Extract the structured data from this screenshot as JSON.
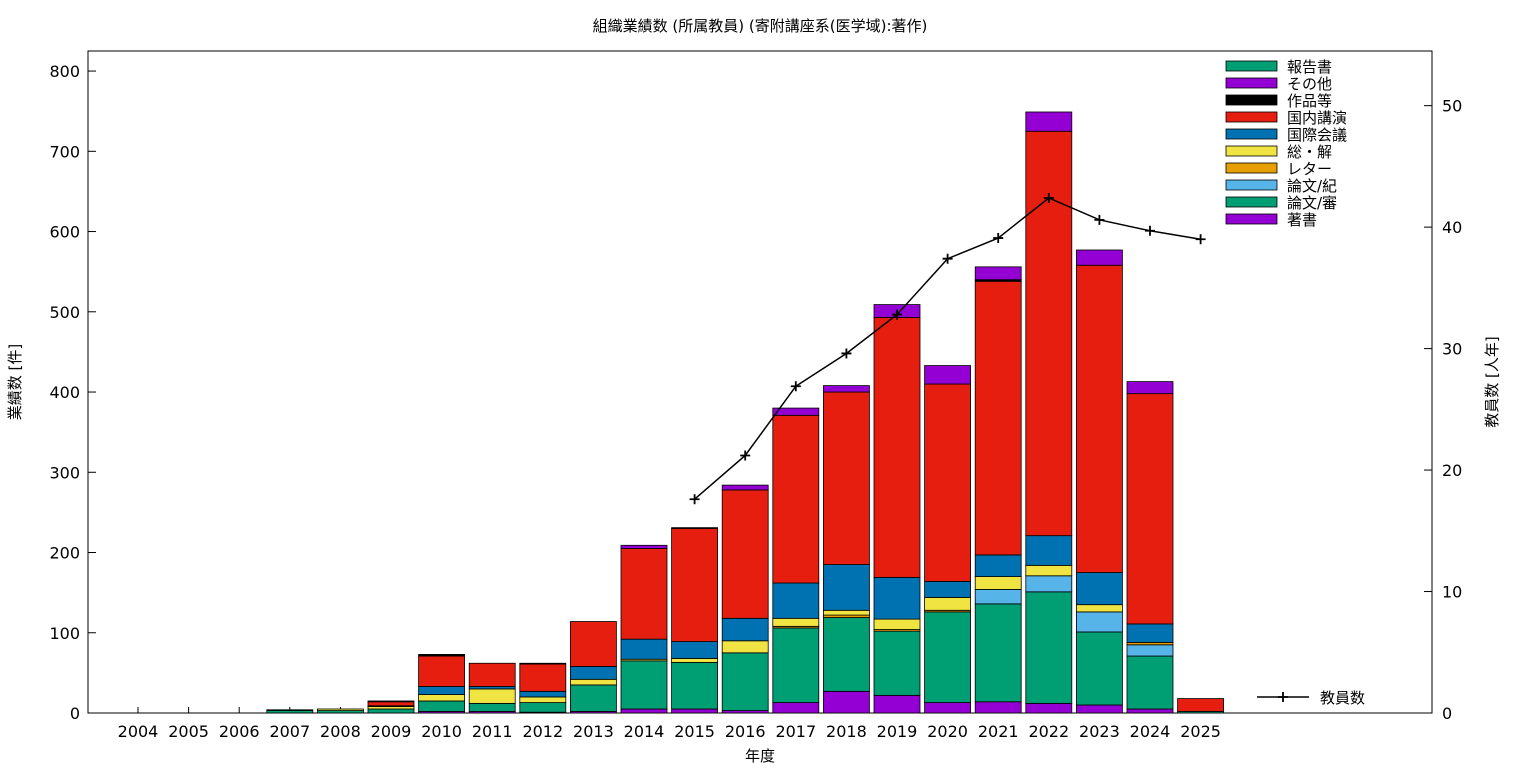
{
  "chart_data": {
    "type": "bar",
    "stacked": true,
    "title": "組織業績数 (所属教員) (寄附講座系(医学域):著作)",
    "xlabel": "年度",
    "ylabel": "業績数 [件]",
    "y2label": "教員数 [人年]",
    "ylim": [
      0,
      825
    ],
    "y2lim": [
      0,
      54.5
    ],
    "yticks": [
      "0",
      "100",
      "200",
      "300",
      "400",
      "500",
      "600",
      "700",
      "800"
    ],
    "y2ticks": [
      "0",
      "10",
      "20",
      "30",
      "40",
      "50"
    ],
    "legend_position": "top-right",
    "categories": [
      "2004",
      "2005",
      "2006",
      "2007",
      "2008",
      "2009",
      "2010",
      "2011",
      "2012",
      "2013",
      "2014",
      "2015",
      "2016",
      "2017",
      "2018",
      "2019",
      "2020",
      "2021",
      "2022",
      "2023",
      "2024",
      "2025"
    ],
    "series": [
      {
        "name": "著書",
        "color": "#9400d3",
        "values": [
          0,
          0,
          0,
          0,
          0,
          0,
          2,
          2,
          1,
          2,
          5,
          5,
          3,
          13,
          27,
          22,
          13,
          14,
          12,
          10,
          5,
          0
        ]
      },
      {
        "name": "論文/審",
        "color": "#009e73",
        "values": [
          0,
          0,
          0,
          3,
          3,
          5,
          13,
          10,
          12,
          33,
          60,
          58,
          72,
          93,
          92,
          80,
          113,
          122,
          139,
          91,
          66,
          2
        ]
      },
      {
        "name": "論文/紀",
        "color": "#56b4e9",
        "values": [
          0,
          0,
          0,
          0,
          0,
          0,
          0,
          0,
          0,
          0,
          0,
          0,
          0,
          0,
          0,
          0,
          0,
          18,
          20,
          25,
          14,
          0
        ]
      },
      {
        "name": "レター",
        "color": "#e69f00",
        "values": [
          0,
          0,
          0,
          0,
          0,
          0,
          0,
          0,
          0,
          0,
          0,
          0,
          0,
          2,
          3,
          2,
          2,
          0,
          0,
          0,
          3,
          0
        ]
      },
      {
        "name": "総・解",
        "color": "#f0e442",
        "values": [
          0,
          0,
          0,
          0,
          2,
          3,
          8,
          18,
          7,
          7,
          2,
          5,
          15,
          10,
          6,
          13,
          16,
          16,
          13,
          9,
          0,
          0
        ]
      },
      {
        "name": "国際会議",
        "color": "#0072b2",
        "values": [
          0,
          0,
          0,
          1,
          0,
          1,
          10,
          3,
          7,
          16,
          25,
          21,
          28,
          44,
          57,
          52,
          20,
          27,
          37,
          40,
          23,
          0
        ]
      },
      {
        "name": "国内講演",
        "color": "#e51e10",
        "values": [
          0,
          0,
          0,
          0,
          0,
          5,
          38,
          29,
          34,
          56,
          113,
          141,
          160,
          209,
          215,
          324,
          246,
          341,
          504,
          383,
          287,
          16
        ]
      },
      {
        "name": "作品等",
        "color": "#000000",
        "values": [
          0,
          0,
          0,
          0,
          0,
          1,
          2,
          0,
          1,
          0,
          0,
          1,
          0,
          0,
          0,
          0,
          0,
          2,
          0,
          0,
          0,
          0
        ]
      },
      {
        "name": "その他",
        "color": "#9400d3",
        "values": [
          0,
          0,
          0,
          0,
          0,
          0,
          0,
          0,
          0,
          0,
          4,
          0,
          6,
          9,
          8,
          16,
          23,
          16,
          24,
          19,
          15,
          0
        ]
      },
      {
        "name": "報告書",
        "color": "#009e73",
        "values": [
          0,
          0,
          0,
          0,
          0,
          0,
          0,
          0,
          0,
          0,
          0,
          0,
          0,
          0,
          0,
          0,
          0,
          0,
          0,
          0,
          0,
          0
        ]
      }
    ],
    "line": {
      "name": "教員数",
      "axis": "right",
      "color": "#000000",
      "x": [
        "2015",
        "2016",
        "2017",
        "2018",
        "2019",
        "2020",
        "2021",
        "2022",
        "2023",
        "2024",
        "2025"
      ],
      "values": [
        17.6,
        21.2,
        26.9,
        29.6,
        32.8,
        37.4,
        39.1,
        42.4,
        40.6,
        39.7,
        39.0
      ]
    }
  }
}
